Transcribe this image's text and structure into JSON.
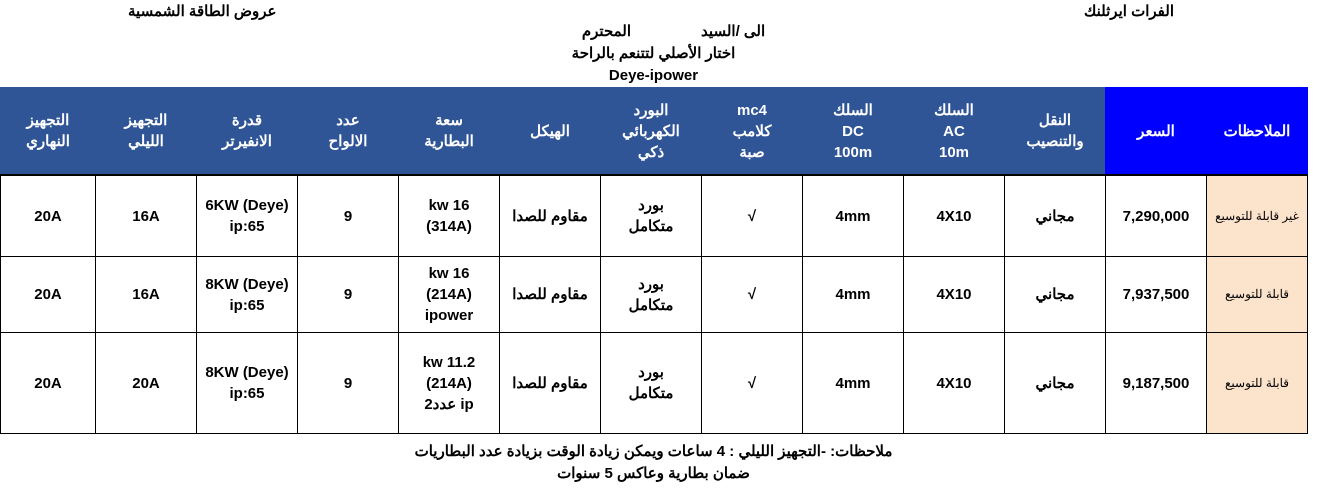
{
  "header": {
    "company": "الفرات ايرثلنك",
    "offers_title": "عروض الطاقة الشمسية",
    "to_mr": "الى /السيد",
    "respected": "المحترم",
    "slogan": "اختار الأصلي لتتنعم بالراحة",
    "brand": "Deye-ipower"
  },
  "table": {
    "columns": [
      "الملاحظات",
      "السعر",
      "النقل\nوالتنصيب",
      "السلك\nAC\n10m",
      "السلك\nDC\n100m",
      "mc4\nكلامب\nصبة",
      "البورد\nالكهربائي\nذكي",
      "الهيكل",
      "سعة\nالبطارية",
      "عدد\nالالواح",
      "قدرة\nالانفيرتر",
      "التجهيز\nالليلي",
      "التجهيز\nالنهاري"
    ],
    "rows": [
      [
        "غير قابلة للتوسيع",
        "7,290,000",
        "مجاني",
        "4X10",
        "4mm",
        "√",
        "بورد\nمتكامل",
        "مقاوم للصدا",
        "16 kw\n(314A)",
        "9",
        "6KW (Deye)\nip:65",
        "16A",
        "20A"
      ],
      [
        "قابلة للتوسيع",
        "7,937,500",
        "مجاني",
        "4X10",
        "4mm",
        "√",
        "بورد\nمتكامل",
        "مقاوم للصدا",
        "16 kw\n(214A)\nipower",
        "9",
        "8KW (Deye)\nip:65",
        "16A",
        "20A"
      ],
      [
        "قابلة للتوسيع",
        "9,187,500",
        "مجاني",
        "4X10",
        "4mm",
        "√",
        "بورد\nمتكامل",
        "مقاوم للصدا",
        "11.2 kw\n(214A)\nip عدد2",
        "9",
        "8KW (Deye)\nip:65",
        "20A",
        "20A"
      ]
    ]
  },
  "footer": {
    "note": "ملاحظات: -التجهيز الليلي : 4 ساعات ويمكن زيادة الوقت بزيادة عدد البطاريات",
    "warranty": "ضمان بطارية وعاكس 5 سنوات"
  },
  "colors": {
    "header_bg": "#2f5597",
    "header_highlight": "#0000ff",
    "notes_bg": "#fbe3cc"
  }
}
